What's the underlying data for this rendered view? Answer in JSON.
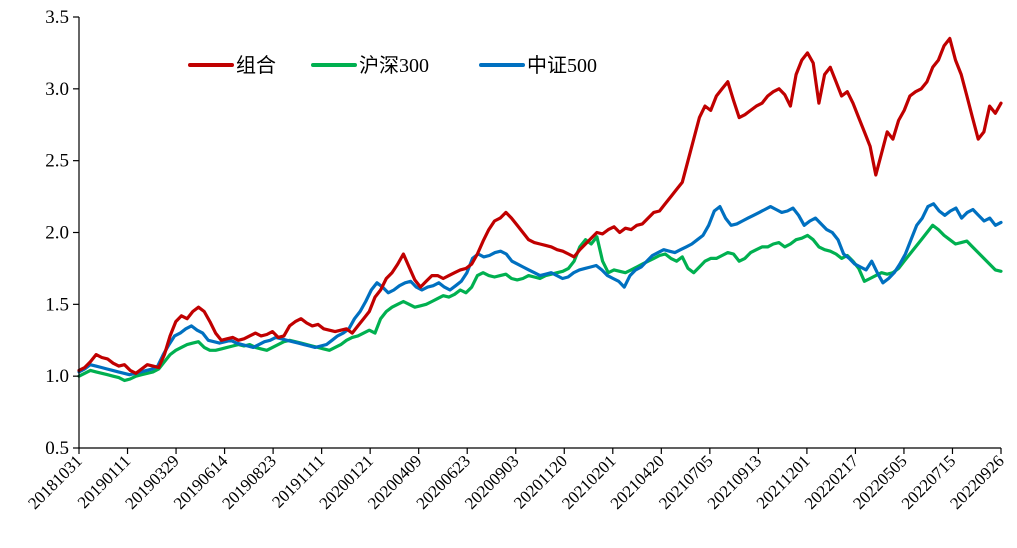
{
  "chart_data": {
    "type": "line",
    "title": "",
    "xlabel": "",
    "ylabel": "",
    "ylim": [
      0.5,
      3.5
    ],
    "yticks": [
      3.5,
      3.0,
      2.5,
      2.0,
      1.5,
      1.0,
      0.5
    ],
    "ytick_labels": [
      "3.5",
      "3.0",
      "2.5",
      "2.0",
      "1.5",
      "1.0",
      "0.5"
    ],
    "xtick_labels": [
      "20181031",
      "20190111",
      "20190329",
      "20190614",
      "20190823",
      "20191111",
      "20200121",
      "20200409",
      "20200623",
      "20200903",
      "20201120",
      "20210201",
      "20210420",
      "20210705",
      "20210913",
      "20211201",
      "20220217",
      "20220505",
      "20220715",
      "20220926"
    ],
    "legend_position": "top-left",
    "grid": false,
    "series": [
      {
        "name": "组合",
        "color": "#C00000",
        "values": [
          1.04,
          1.06,
          1.1,
          1.15,
          1.13,
          1.12,
          1.09,
          1.07,
          1.08,
          1.04,
          1.02,
          1.05,
          1.08,
          1.07,
          1.06,
          1.15,
          1.28,
          1.38,
          1.42,
          1.4,
          1.45,
          1.48,
          1.45,
          1.38,
          1.3,
          1.25,
          1.26,
          1.27,
          1.25,
          1.26,
          1.28,
          1.3,
          1.28,
          1.29,
          1.31,
          1.27,
          1.28,
          1.35,
          1.38,
          1.4,
          1.37,
          1.35,
          1.36,
          1.33,
          1.32,
          1.31,
          1.32,
          1.33,
          1.3,
          1.35,
          1.4,
          1.45,
          1.55,
          1.6,
          1.68,
          1.72,
          1.78,
          1.85,
          1.76,
          1.67,
          1.62,
          1.66,
          1.7,
          1.7,
          1.68,
          1.7,
          1.72,
          1.74,
          1.75,
          1.78,
          1.85,
          1.94,
          2.02,
          2.08,
          2.1,
          2.14,
          2.1,
          2.05,
          2.0,
          1.95,
          1.93,
          1.92,
          1.91,
          1.9,
          1.88,
          1.87,
          1.85,
          1.83,
          1.88,
          1.92,
          1.96,
          2.0,
          1.99,
          2.02,
          2.04,
          2.0,
          2.03,
          2.02,
          2.05,
          2.06,
          2.1,
          2.14,
          2.15,
          2.2,
          2.25,
          2.3,
          2.35,
          2.5,
          2.65,
          2.8,
          2.88,
          2.85,
          2.95,
          3.0,
          3.05,
          2.92,
          2.8,
          2.82,
          2.85,
          2.88,
          2.9,
          2.95,
          2.98,
          3.0,
          2.96,
          2.88,
          3.1,
          3.2,
          3.25,
          3.18,
          2.9,
          3.1,
          3.15,
          3.05,
          2.95,
          2.98,
          2.9,
          2.8,
          2.7,
          2.6,
          2.4,
          2.55,
          2.7,
          2.65,
          2.78,
          2.85,
          2.95,
          2.98,
          3.0,
          3.05,
          3.15,
          3.2,
          3.3,
          3.35,
          3.2,
          3.1,
          2.95,
          2.8,
          2.65,
          2.7,
          2.88,
          2.83,
          2.9
        ]
      },
      {
        "name": "沪深300",
        "color": "#00B050",
        "values": [
          1.0,
          1.02,
          1.04,
          1.03,
          1.02,
          1.01,
          1.0,
          0.99,
          0.97,
          0.98,
          1.0,
          1.01,
          1.02,
          1.03,
          1.05,
          1.1,
          1.15,
          1.18,
          1.2,
          1.22,
          1.23,
          1.24,
          1.2,
          1.18,
          1.18,
          1.19,
          1.2,
          1.21,
          1.22,
          1.21,
          1.22,
          1.2,
          1.19,
          1.18,
          1.2,
          1.22,
          1.24,
          1.25,
          1.24,
          1.23,
          1.22,
          1.21,
          1.2,
          1.19,
          1.18,
          1.2,
          1.22,
          1.25,
          1.27,
          1.28,
          1.3,
          1.32,
          1.3,
          1.4,
          1.45,
          1.48,
          1.5,
          1.52,
          1.5,
          1.48,
          1.49,
          1.5,
          1.52,
          1.54,
          1.56,
          1.55,
          1.57,
          1.6,
          1.58,
          1.62,
          1.7,
          1.72,
          1.7,
          1.69,
          1.7,
          1.71,
          1.68,
          1.67,
          1.68,
          1.7,
          1.69,
          1.68,
          1.7,
          1.71,
          1.72,
          1.73,
          1.75,
          1.8,
          1.9,
          1.95,
          1.92,
          1.97,
          1.8,
          1.72,
          1.74,
          1.73,
          1.72,
          1.74,
          1.76,
          1.78,
          1.8,
          1.82,
          1.84,
          1.85,
          1.82,
          1.8,
          1.83,
          1.75,
          1.72,
          1.76,
          1.8,
          1.82,
          1.82,
          1.84,
          1.86,
          1.85,
          1.8,
          1.82,
          1.86,
          1.88,
          1.9,
          1.9,
          1.92,
          1.93,
          1.9,
          1.92,
          1.95,
          1.96,
          1.98,
          1.95,
          1.9,
          1.88,
          1.87,
          1.85,
          1.82,
          1.84,
          1.8,
          1.75,
          1.66,
          1.68,
          1.7,
          1.72,
          1.71,
          1.72,
          1.75,
          1.8,
          1.85,
          1.9,
          1.95,
          2.0,
          2.05,
          2.02,
          1.98,
          1.95,
          1.92,
          1.93,
          1.94,
          1.9,
          1.86,
          1.82,
          1.78,
          1.74,
          1.73
        ]
      },
      {
        "name": "中证500",
        "color": "#0070C0",
        "values": [
          1.03,
          1.05,
          1.08,
          1.07,
          1.06,
          1.05,
          1.04,
          1.03,
          1.02,
          1.01,
          1.02,
          1.03,
          1.04,
          1.05,
          1.07,
          1.15,
          1.22,
          1.28,
          1.3,
          1.33,
          1.35,
          1.32,
          1.3,
          1.25,
          1.24,
          1.23,
          1.24,
          1.25,
          1.23,
          1.22,
          1.21,
          1.2,
          1.22,
          1.24,
          1.25,
          1.27,
          1.26,
          1.25,
          1.24,
          1.23,
          1.22,
          1.21,
          1.2,
          1.21,
          1.22,
          1.25,
          1.28,
          1.3,
          1.33,
          1.4,
          1.45,
          1.52,
          1.6,
          1.65,
          1.62,
          1.58,
          1.6,
          1.63,
          1.65,
          1.66,
          1.62,
          1.6,
          1.62,
          1.63,
          1.65,
          1.62,
          1.6,
          1.63,
          1.66,
          1.72,
          1.82,
          1.85,
          1.83,
          1.84,
          1.86,
          1.87,
          1.85,
          1.8,
          1.78,
          1.76,
          1.74,
          1.72,
          1.7,
          1.71,
          1.72,
          1.7,
          1.68,
          1.69,
          1.72,
          1.74,
          1.75,
          1.76,
          1.77,
          1.74,
          1.7,
          1.68,
          1.66,
          1.62,
          1.7,
          1.74,
          1.76,
          1.8,
          1.84,
          1.86,
          1.88,
          1.87,
          1.86,
          1.88,
          1.9,
          1.92,
          1.95,
          1.98,
          2.05,
          2.15,
          2.18,
          2.1,
          2.05,
          2.06,
          2.08,
          2.1,
          2.12,
          2.14,
          2.16,
          2.18,
          2.16,
          2.14,
          2.15,
          2.17,
          2.12,
          2.05,
          2.08,
          2.1,
          2.06,
          2.02,
          2.0,
          1.95,
          1.85,
          1.82,
          1.78,
          1.76,
          1.74,
          1.8,
          1.72,
          1.65,
          1.68,
          1.72,
          1.78,
          1.85,
          1.95,
          2.05,
          2.1,
          2.18,
          2.2,
          2.15,
          2.12,
          2.15,
          2.17,
          2.1,
          2.14,
          2.16,
          2.12,
          2.08,
          2.1,
          2.05,
          2.07
        ]
      }
    ]
  }
}
